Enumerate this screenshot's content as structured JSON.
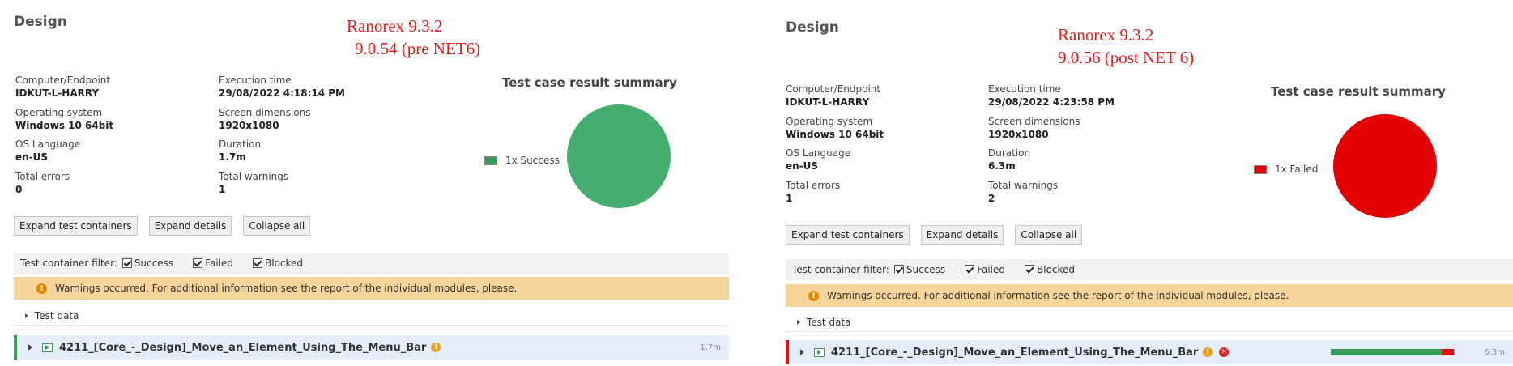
{
  "left": {
    "title": "Design",
    "annotation": [
      "Ranorex 9.3.2",
      "9.0.54 (pre NET6)"
    ],
    "info": [
      {
        "label": "Computer/Endpoint",
        "value": "IDKUT-L-HARRY"
      },
      {
        "label": "Execution time",
        "value": "29/08/2022 4:18:14 PM"
      },
      {
        "label": "Operating system",
        "value": "Windows 10 64bit"
      },
      {
        "label": "Screen dimensions",
        "value": "1920x1080"
      },
      {
        "label": "OS Language",
        "value": "en-US"
      },
      {
        "label": "Duration",
        "value": "1.7m"
      },
      {
        "label": "Total errors",
        "value": "0"
      },
      {
        "label": "Total warnings",
        "value": "1"
      }
    ],
    "summary_title": "Test case result summary",
    "legend": "1x Success",
    "legend_color": "#3a9a5a",
    "pie_color": "#43ae6d",
    "buttons": [
      "Expand test containers",
      "Expand details",
      "Collapse all"
    ],
    "filter": {
      "label": "Test container filter:",
      "options": [
        "Success",
        "Failed",
        "Blocked"
      ]
    },
    "warning": "Warnings occurred. For additional information see the report of the individual modules, please.",
    "testdata": "Test data",
    "container": {
      "name": "4211_[Core_-_Design]_Move_an_Element_Using_The_Menu_Bar",
      "duration": "1.7m",
      "stripe_color": "#3a9a5a",
      "bg": "#e3eefa"
    }
  },
  "right": {
    "title": "Design",
    "annotation": [
      "Ranorex 9.3.2",
      "9.0.56 (post NET 6)"
    ],
    "info": [
      {
        "label": "Computer/Endpoint",
        "value": "IDKUT-L-HARRY"
      },
      {
        "label": "Execution time",
        "value": "29/08/2022 4:23:58 PM"
      },
      {
        "label": "Operating system",
        "value": "Windows 10 64bit"
      },
      {
        "label": "Screen dimensions",
        "value": "1920x1080"
      },
      {
        "label": "OS Language",
        "value": "en-US"
      },
      {
        "label": "Duration",
        "value": "6.3m"
      },
      {
        "label": "Total errors",
        "value": "1"
      },
      {
        "label": "Total warnings",
        "value": "2"
      }
    ],
    "summary_title": "Test case result summary",
    "legend": "1x Failed",
    "legend_color": "#dd0000",
    "pie_color": "#e30000",
    "buttons": [
      "Expand test containers",
      "Expand details",
      "Collapse all"
    ],
    "filter": {
      "label": "Test container filter:",
      "options": [
        "Success",
        "Failed",
        "Blocked"
      ]
    },
    "warning": "Warnings occurred. For additional information see the report of the individual modules, please.",
    "testdata": "Test data",
    "container": {
      "name": "4211_[Core_-_Design]_Move_an_Element_Using_The_Menu_Bar",
      "duration": "6.3m",
      "stripe_color": "#dd1111",
      "bg": "#e3eefa",
      "progress": {
        "success": 0.9,
        "failed": 0.1,
        "success_color": "#3a9a5a",
        "failed_color": "#dd1111"
      }
    }
  }
}
